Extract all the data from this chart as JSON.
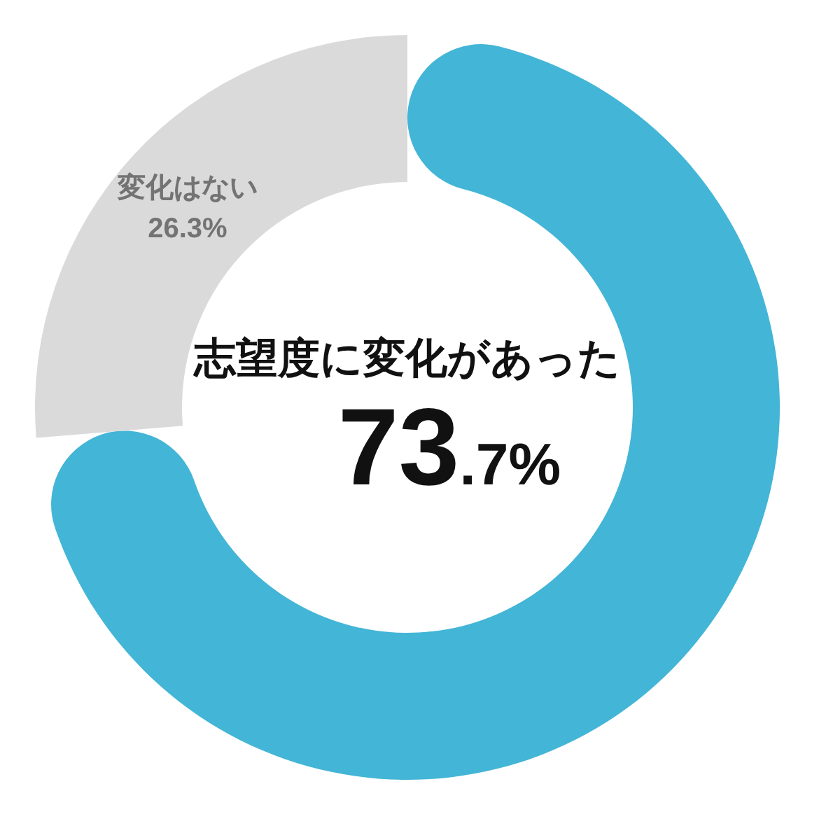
{
  "chart_data": {
    "type": "donut",
    "categories": [
      "志望度に変化があった",
      "変化はない"
    ],
    "values": [
      73.7,
      26.3
    ],
    "colors": [
      "#43b5d6",
      "#dadada"
    ],
    "value_labels": [
      "73.7%",
      "26.3%"
    ]
  }
}
